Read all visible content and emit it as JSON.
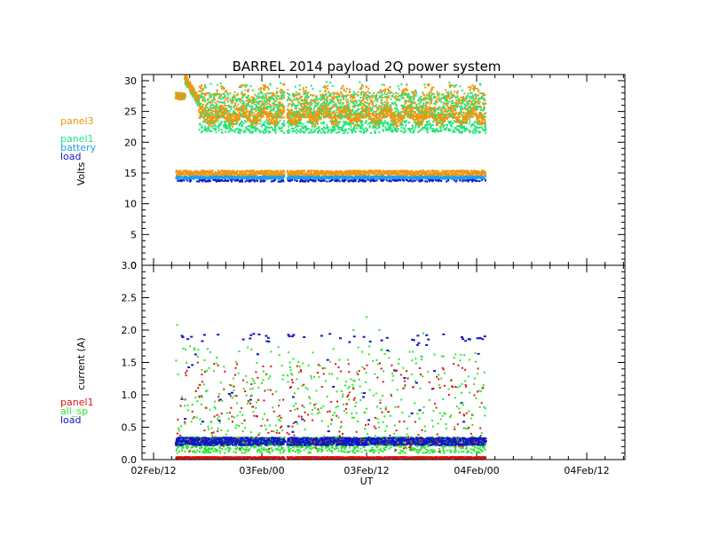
{
  "title": "BARREL 2014 payload 2Q power system",
  "xlabel": "UT",
  "x_ticks": [
    "02Feb/12",
    "03Feb/00",
    "03Feb/12",
    "04Feb/00",
    "04Feb/12"
  ],
  "colors": {
    "panel3": "#f0960f",
    "panel1_volts": "#1ee678",
    "battery": "#1ea0f0",
    "load": "#1414c8",
    "panel1_current": "#dc1414",
    "all_sp": "#28e628"
  },
  "chart_data": [
    {
      "type": "scatter",
      "title": "BARREL 2014 payload 2Q power system",
      "xlabel": "",
      "ylabel": "Volts",
      "x_hours_range": [
        -3,
        57
      ],
      "x_note_units": "hours",
      "ylim": [
        0,
        31
      ],
      "y_ticks": [
        "0",
        "5",
        "10",
        "15",
        "20",
        "25",
        "30"
      ],
      "legend": [
        "panel3",
        "panel1",
        "battery",
        "load"
      ],
      "series": [
        {
          "name": "panel3",
          "data_span": [
            2.5,
            37
          ],
          "values_band": [
            22,
            30.5
          ]
        },
        {
          "name": "panel1",
          "data_span": [
            2.5,
            37
          ],
          "values_band": [
            20,
            29.5
          ]
        },
        {
          "name": "battery",
          "data_span": [
            2.5,
            37
          ],
          "values_band": [
            14,
            15.5
          ]
        },
        {
          "name": "load",
          "data_span": [
            2.5,
            37
          ],
          "values_band": [
            13.5,
            14
          ]
        }
      ]
    },
    {
      "type": "scatter",
      "xlabel": "UT",
      "ylabel": "current (A)",
      "ylim": [
        0,
        3
      ],
      "y_ticks": [
        "0.0",
        "0.5",
        "1.0",
        "1.5",
        "2.0",
        "2.5",
        "3.0"
      ],
      "legend": [
        "panel1",
        "all_sp",
        "load"
      ],
      "series": [
        {
          "name": "panel1",
          "data_span": [
            2.5,
            37
          ],
          "values_band": [
            0.0,
            1.8
          ]
        },
        {
          "name": "all_sp",
          "data_span": [
            2.5,
            37
          ],
          "values_band": [
            0.0,
            2.2
          ]
        },
        {
          "name": "load",
          "data_span": [
            2.5,
            37
          ],
          "values_band": [
            0.2,
            1.95
          ]
        }
      ]
    }
  ]
}
